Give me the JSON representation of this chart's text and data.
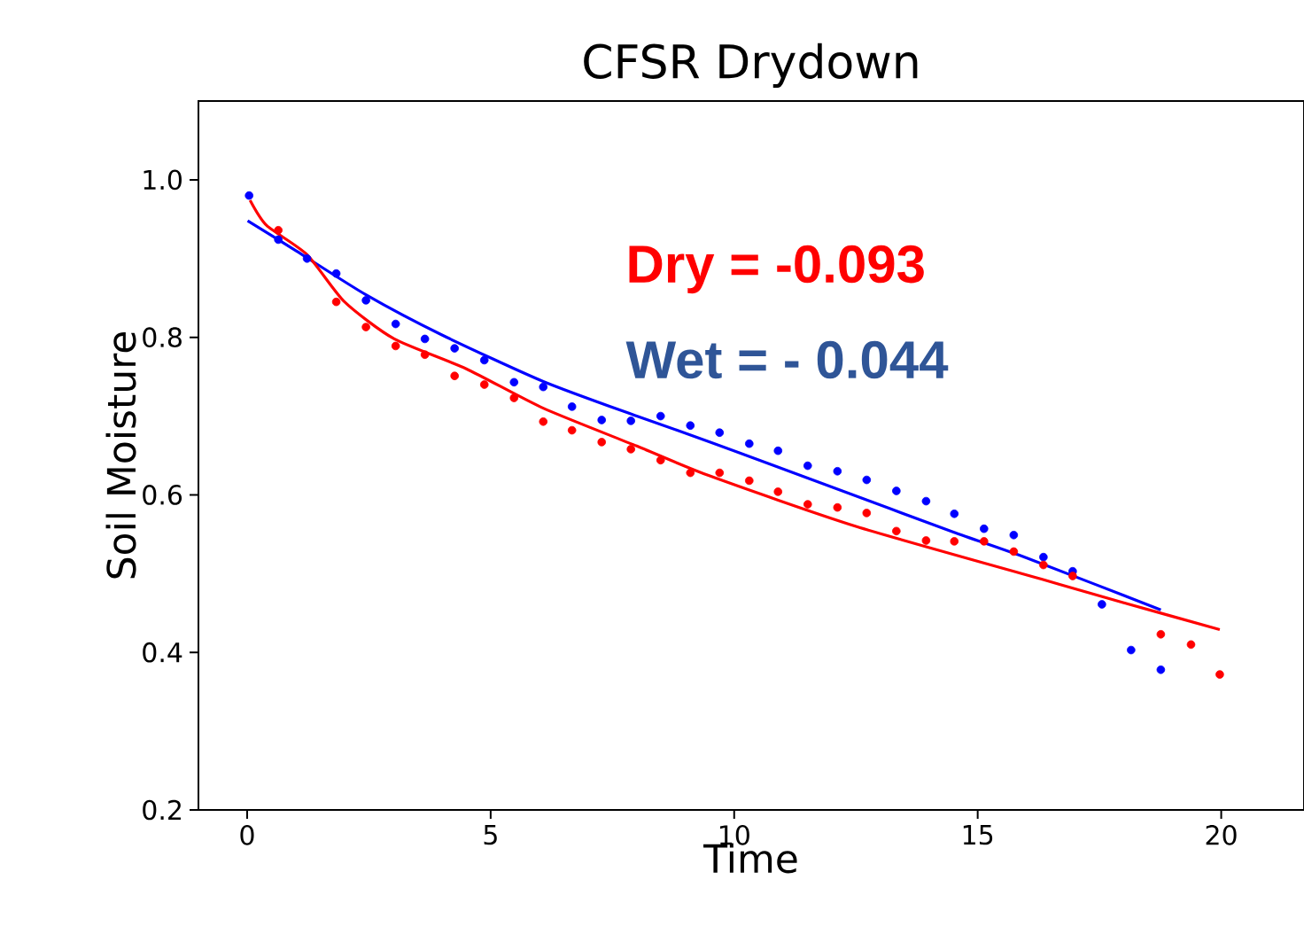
{
  "chart_data": {
    "type": "scatter",
    "title": "CFSR Drydown",
    "xlabel": "Time",
    "ylabel": "Soil Moisture",
    "xlim": [
      -1,
      21.7
    ],
    "ylim": [
      0.2,
      1.1
    ],
    "xticks": [
      0,
      5,
      10,
      15,
      20
    ],
    "yticks": [
      0.2,
      0.4,
      0.6,
      0.8,
      {
        "value": 1.0,
        "label": "1.0"
      }
    ],
    "marker": "circle",
    "annotations": [
      "Dry = -0.093",
      "Wet = - 0.044"
    ],
    "series": [
      {
        "color": "#0000ff",
        "x": [
          0.04,
          0.64,
          1.23,
          1.83,
          2.44,
          3.05,
          3.65,
          4.26,
          4.87,
          5.48,
          6.08,
          6.67,
          7.28,
          7.88,
          8.49,
          9.1,
          9.7,
          10.31,
          10.9,
          11.51,
          12.12,
          12.72,
          13.33,
          13.94,
          14.52,
          15.13,
          15.74,
          16.35,
          16.95,
          17.55,
          18.15,
          18.76
        ],
        "values": [
          0.98,
          0.924,
          0.9,
          0.881,
          0.847,
          0.817,
          0.798,
          0.786,
          0.771,
          0.743,
          0.737,
          0.712,
          0.695,
          0.694,
          0.7,
          0.688,
          0.679,
          0.665,
          0.656,
          0.637,
          0.63,
          0.619,
          0.605,
          0.592,
          0.576,
          0.557,
          0.549,
          0.521,
          0.503,
          0.461,
          0.403,
          0.378
        ]
      },
      {
        "color": "#ff0000",
        "x": [
          0.64,
          1.83,
          2.44,
          3.05,
          3.65,
          4.26,
          4.87,
          5.48,
          6.08,
          6.67,
          7.28,
          7.88,
          8.49,
          9.1,
          9.7,
          10.31,
          10.9,
          11.51,
          12.12,
          12.72,
          13.33,
          13.94,
          14.52,
          15.13,
          15.74,
          16.35,
          16.95,
          18.76,
          19.38,
          19.97
        ],
        "values": [
          0.936,
          0.845,
          0.813,
          0.789,
          0.778,
          0.751,
          0.74,
          0.723,
          0.693,
          0.682,
          0.667,
          0.658,
          0.644,
          0.628,
          0.628,
          0.618,
          0.604,
          0.588,
          0.584,
          0.577,
          0.554,
          0.542,
          0.541,
          0.541,
          0.528,
          0.511,
          0.497,
          0.423,
          0.41,
          0.372
        ]
      },
      {
        "type": "line",
        "color": "#0000ff",
        "marker": "none",
        "x": [
          0.01,
          1.0,
          2.44,
          4.0,
          6.08,
          8.0,
          9.51,
          12.0,
          14.49,
          16.0,
          18.76
        ],
        "values": [
          0.948,
          0.91,
          0.854,
          0.803,
          0.744,
          0.7,
          0.667,
          0.61,
          0.553,
          0.52,
          0.454
        ]
      },
      {
        "type": "line",
        "color": "#ff0000",
        "marker": "none",
        "x": [
          0.06,
          0.4,
          1.23,
          2.0,
          3.02,
          4.5,
          6.08,
          8.0,
          9.5,
          12.5,
          16.31,
          18.0,
          19.97
        ],
        "values": [
          0.974,
          0.942,
          0.905,
          0.845,
          0.798,
          0.76,
          0.71,
          0.662,
          0.624,
          0.56,
          0.493,
          0.463,
          0.429
        ]
      }
    ]
  }
}
